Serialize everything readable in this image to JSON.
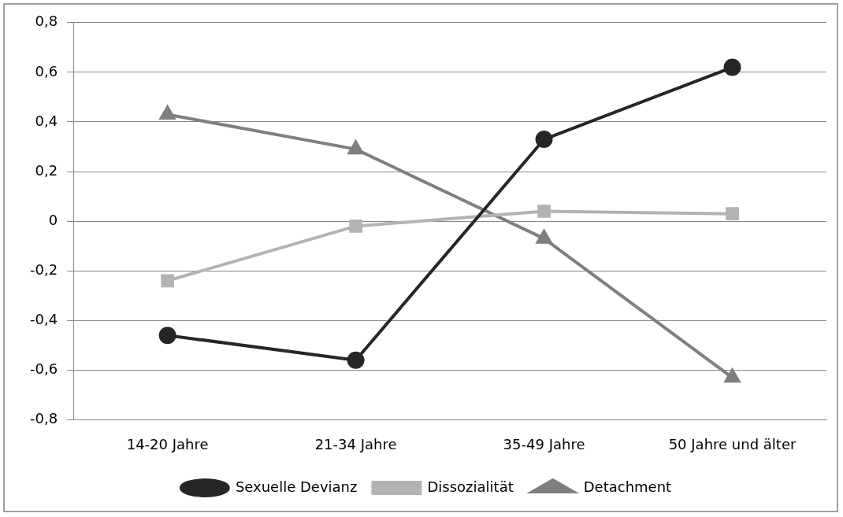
{
  "chart_data": {
    "type": "line",
    "categories": [
      "14-20 Jahre",
      "21-34 Jahre",
      "35-49 Jahre",
      "50 Jahre und älter"
    ],
    "series": [
      {
        "name": "Sexuelle Devianz",
        "color": "#262626",
        "values": [
          -0.46,
          -0.56,
          0.33,
          0.62
        ],
        "marker": "circle"
      },
      {
        "name": "Dissozialität",
        "color": "#b3b3b3",
        "values": [
          -0.24,
          -0.02,
          0.04,
          0.03
        ],
        "marker": "square"
      },
      {
        "name": "Detachment",
        "color": "#7f7f7f",
        "values": [
          0.43,
          0.29,
          -0.07,
          -0.63
        ],
        "marker": "triangle"
      }
    ],
    "ylim": [
      -0.8,
      0.8
    ],
    "yticks": [
      {
        "value": -0.8,
        "label": "-0,8"
      },
      {
        "value": -0.6,
        "label": "-0,6"
      },
      {
        "value": -0.4,
        "label": "-0,4"
      },
      {
        "value": -0.2,
        "label": "-0,2"
      },
      {
        "value": 0,
        "label": "0"
      },
      {
        "value": 0.2,
        "label": "0,2"
      },
      {
        "value": 0.4,
        "label": "0,4"
      },
      {
        "value": 0.6,
        "label": "0,6"
      },
      {
        "value": 0.8,
        "label": "0,8"
      }
    ],
    "grid": "y",
    "legend": "bottom",
    "line_style": "solid"
  }
}
